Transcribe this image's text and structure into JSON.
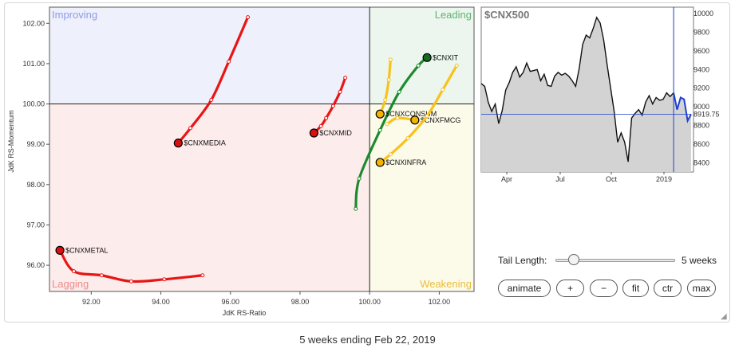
{
  "chart_data": [
    {
      "type": "scatter",
      "xlabel": "JdK RS-Ratio",
      "ylabel": "JdK RS-Momentum",
      "xlim": [
        90.8,
        103.0
      ],
      "ylim": [
        95.35,
        102.4
      ],
      "center": [
        100,
        100
      ],
      "x_ticks": [
        "92.00",
        "94.00",
        "96.00",
        "98.00",
        "100.00",
        "102.00"
      ],
      "y_ticks": [
        "96.00",
        "97.00",
        "98.00",
        "99.00",
        "100.00",
        "101.00",
        "102.00"
      ],
      "quadrants": [
        {
          "name": "Improving",
          "position": "top-left",
          "color": "#8e9be6",
          "bg": "#eef0fb"
        },
        {
          "name": "Leading",
          "position": "top-right",
          "color": "#5fb370",
          "bg": "#edf6ee"
        },
        {
          "name": "Lagging",
          "position": "bottom-left",
          "color": "#ee8a8a",
          "bg": "#fdecec"
        },
        {
          "name": "Weakening",
          "position": "bottom-right",
          "color": "#e8bd3e",
          "bg": "#fcfbea"
        }
      ],
      "series": [
        {
          "name": "$CNXMEDIA",
          "color": "#e81515",
          "fill": "#d91010",
          "points": [
            [
              96.5,
              102.15
            ],
            [
              95.95,
              101.05
            ],
            [
              95.45,
              100.1
            ],
            [
              94.85,
              99.4
            ],
            [
              94.5,
              99.03
            ]
          ]
        },
        {
          "name": "$CNXMID",
          "color": "#e81515",
          "fill": "#d91010",
          "points": [
            [
              99.3,
              100.65
            ],
            [
              99.15,
              100.3
            ],
            [
              98.95,
              99.95
            ],
            [
              98.75,
              99.65
            ],
            [
              98.6,
              99.45
            ],
            [
              98.4,
              99.28
            ]
          ]
        },
        {
          "name": "$CNXIT",
          "color": "#1e8a2e",
          "fill": "#136b22",
          "points": [
            [
              99.6,
              97.4
            ],
            [
              99.7,
              98.15
            ],
            [
              100.3,
              99.35
            ],
            [
              100.85,
              100.3
            ],
            [
              101.4,
              100.95
            ],
            [
              101.65,
              101.15
            ]
          ]
        },
        {
          "name": "$CNXCONSUM",
          "color": "#f6c21c",
          "fill": "#f3b400",
          "points": [
            [
              100.6,
              101.1
            ],
            [
              100.55,
              100.6
            ],
            [
              100.45,
              100.1
            ],
            [
              100.3,
              99.75
            ]
          ]
        },
        {
          "name": "$CNXFMCG",
          "color": "#f6c21c",
          "fill": "#f3b400",
          "points": [
            [
              100.5,
              99.5
            ],
            [
              100.8,
              99.65
            ],
            [
              101.3,
              99.6
            ]
          ]
        },
        {
          "name": "$CNXINFRA",
          "color": "#f6c21c",
          "fill": "#f3b400",
          "points": [
            [
              102.5,
              100.95
            ],
            [
              102.1,
              100.35
            ],
            [
              101.65,
              99.7
            ],
            [
              101.1,
              99.15
            ],
            [
              100.6,
              98.75
            ],
            [
              100.3,
              98.55
            ]
          ]
        },
        {
          "name": "$CNXMETAL",
          "color": "#e81515",
          "fill": "#d91010",
          "points": [
            [
              95.2,
              95.75
            ],
            [
              94.1,
              95.65
            ],
            [
              93.15,
              95.6
            ],
            [
              92.3,
              95.75
            ],
            [
              91.5,
              95.85
            ],
            [
              91.1,
              96.37
            ]
          ]
        }
      ]
    },
    {
      "type": "area",
      "title": "$CNX500",
      "x_ticks": [
        "Apr",
        "Jul",
        "Oct",
        "2019"
      ],
      "y_ticks": [
        "8400",
        "8600",
        "8800",
        "9000",
        "9200",
        "9400",
        "9600",
        "9800",
        "10000"
      ],
      "ylim": [
        8300,
        10070
      ],
      "last_value": "8919.75",
      "line_color": "#111111",
      "recent_color": "#1f3fcf",
      "values": [
        9250,
        9220,
        9050,
        8950,
        9030,
        8820,
        8960,
        9180,
        9260,
        9370,
        9430,
        9320,
        9370,
        9470,
        9380,
        9390,
        9400,
        9280,
        9350,
        9230,
        9220,
        9330,
        9370,
        9340,
        9360,
        9330,
        9280,
        9220,
        9410,
        9670,
        9770,
        9740,
        9840,
        9960,
        9900,
        9720,
        9450,
        9200,
        8950,
        8620,
        8720,
        8620,
        8410,
        8880,
        8930,
        8970,
        8910,
        9050,
        9120,
        9030,
        9100,
        9070,
        9080,
        9150,
        9110,
        9150,
        8970,
        9100,
        9080,
        8850,
        8920
      ]
    }
  ],
  "controls": {
    "tail_length_label": "Tail Length:",
    "tail_length_value": "5 weeks",
    "tail_length_fraction": 0.13,
    "buttons": [
      "animate",
      "+",
      "−",
      "fit",
      "ctr",
      "max"
    ]
  },
  "caption": "5 weeks ending Feb 22, 2019"
}
